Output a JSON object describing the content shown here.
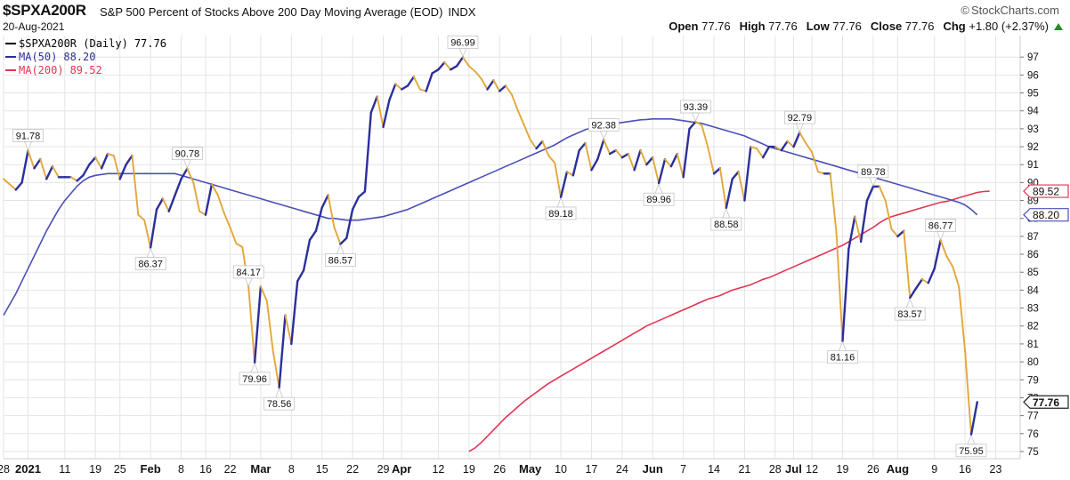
{
  "header": {
    "symbol": "$SPXA200R",
    "description": "S&P 500 Percent of Stocks Above 200 Day Moving Average (EOD)",
    "exchange": "INDX",
    "date": "20-Aug-2021",
    "brand": "StockCharts.com",
    "open_label": "Open",
    "open_value": "77.76",
    "high_label": "High",
    "high_value": "77.76",
    "low_label": "Low",
    "low_value": "77.76",
    "close_label": "Close",
    "close_value": "77.76",
    "chg_label": "Chg",
    "chg_value": "+1.80 (+2.37%)"
  },
  "colors": {
    "up_line": "#2b2f9a",
    "down_line": "#e3a73b",
    "ma50": "#4b4fb8",
    "ma200": "#e33553",
    "grid": "#e4e4e4"
  },
  "chart_data": {
    "type": "line",
    "title": "S&P 500 Percent of Stocks Above 200 Day Moving Average (EOD)",
    "ylim": [
      74.6,
      98.2
    ],
    "yticks": [
      75,
      76,
      77,
      78,
      79,
      80,
      81,
      82,
      83,
      84,
      85,
      86,
      87,
      88,
      89,
      90,
      91,
      92,
      93,
      94,
      95,
      96,
      97
    ],
    "xlim": [
      0,
      166
    ],
    "xticks": [
      {
        "i": 0,
        "label": "28",
        "bold": false
      },
      {
        "i": 4,
        "label": "2021",
        "bold": true
      },
      {
        "i": 10,
        "label": "11",
        "bold": false
      },
      {
        "i": 15,
        "label": "19",
        "bold": false
      },
      {
        "i": 19,
        "label": "25",
        "bold": false
      },
      {
        "i": 24,
        "label": "Feb",
        "bold": true
      },
      {
        "i": 29,
        "label": "8",
        "bold": false
      },
      {
        "i": 33,
        "label": "16",
        "bold": false
      },
      {
        "i": 37,
        "label": "22",
        "bold": false
      },
      {
        "i": 42,
        "label": "Mar",
        "bold": true
      },
      {
        "i": 47,
        "label": "8",
        "bold": false
      },
      {
        "i": 52,
        "label": "15",
        "bold": false
      },
      {
        "i": 57,
        "label": "22",
        "bold": false
      },
      {
        "i": 62,
        "label": "29",
        "bold": false
      },
      {
        "i": 65,
        "label": "Apr",
        "bold": true
      },
      {
        "i": 71,
        "label": "12",
        "bold": false
      },
      {
        "i": 76,
        "label": "19",
        "bold": false
      },
      {
        "i": 81,
        "label": "26",
        "bold": false
      },
      {
        "i": 86,
        "label": "May",
        "bold": true
      },
      {
        "i": 91,
        "label": "10",
        "bold": false
      },
      {
        "i": 96,
        "label": "17",
        "bold": false
      },
      {
        "i": 101,
        "label": "24",
        "bold": false
      },
      {
        "i": 106,
        "label": "Jun",
        "bold": true
      },
      {
        "i": 111,
        "label": "7",
        "bold": false
      },
      {
        "i": 116,
        "label": "14",
        "bold": false
      },
      {
        "i": 121,
        "label": "21",
        "bold": false
      },
      {
        "i": 126,
        "label": "28",
        "bold": false
      },
      {
        "i": 129,
        "label": "Jul",
        "bold": true
      },
      {
        "i": 132,
        "label": "12",
        "bold": false
      },
      {
        "i": 137,
        "label": "19",
        "bold": false
      },
      {
        "i": 142,
        "label": "26",
        "bold": false
      },
      {
        "i": 146,
        "label": "Aug",
        "bold": true
      },
      {
        "i": 152,
        "label": "9",
        "bold": false
      },
      {
        "i": 157,
        "label": "16",
        "bold": false
      },
      {
        "i": 162,
        "label": "23",
        "bold": false
      }
    ],
    "series": [
      {
        "name": "$SPXA200R (Daily)",
        "last_value": "77.76",
        "values": [
          90.2,
          89.9,
          89.6,
          90.0,
          91.78,
          90.8,
          91.3,
          90.2,
          90.9,
          90.3,
          90.3,
          90.3,
          90.1,
          90.4,
          91.0,
          91.4,
          90.8,
          91.6,
          91.5,
          90.2,
          91.0,
          91.5,
          88.2,
          87.9,
          86.37,
          88.5,
          89.1,
          88.4,
          89.3,
          90.2,
          90.78,
          90.0,
          88.4,
          88.2,
          89.9,
          89.3,
          88.3,
          87.5,
          86.6,
          86.4,
          84.17,
          79.96,
          84.2,
          83.4,
          80.6,
          78.56,
          82.6,
          81.0,
          84.5,
          85.1,
          86.8,
          87.3,
          88.6,
          89.3,
          87.5,
          86.57,
          86.9,
          88.5,
          89.2,
          89.5,
          93.9,
          94.8,
          93.1,
          94.6,
          95.5,
          95.2,
          95.4,
          95.9,
          95.2,
          95.1,
          96.1,
          96.3,
          96.7,
          96.3,
          96.5,
          96.99,
          96.5,
          96.2,
          95.8,
          95.2,
          95.7,
          95.1,
          95.4,
          94.9,
          94.0,
          93.2,
          92.4,
          91.9,
          92.3,
          91.5,
          91.1,
          89.18,
          90.6,
          90.4,
          91.8,
          92.2,
          90.7,
          91.3,
          92.38,
          91.6,
          91.8,
          91.4,
          91.6,
          90.7,
          91.8,
          91.0,
          91.4,
          89.96,
          91.3,
          90.9,
          91.6,
          90.3,
          93.0,
          93.39,
          93.2,
          92.0,
          90.5,
          90.8,
          88.58,
          90.2,
          90.6,
          89.0,
          92.0,
          91.9,
          91.4,
          92.0,
          92.0,
          91.8,
          92.3,
          92.0,
          92.79,
          92.2,
          91.7,
          90.6,
          90.5,
          90.5,
          87.2,
          81.16,
          86.3,
          88.1,
          86.7,
          89.0,
          89.78,
          89.78,
          89.0,
          87.4,
          87.0,
          87.3,
          83.57,
          84.1,
          84.6,
          84.4,
          85.2,
          86.77,
          85.9,
          85.3,
          84.2,
          80.6,
          75.95,
          77.76
        ]
      },
      {
        "name": "MA(50)",
        "last_value": "88.20",
        "values": [
          82.6,
          83.2,
          83.8,
          84.5,
          85.2,
          85.9,
          86.6,
          87.3,
          87.9,
          88.5,
          89.0,
          89.4,
          89.8,
          90.1,
          90.3,
          90.4,
          90.45,
          90.5,
          90.5,
          90.5,
          90.5,
          90.5,
          90.5,
          90.5,
          90.5,
          90.5,
          90.5,
          90.5,
          90.5,
          90.4,
          90.3,
          90.2,
          90.1,
          90.0,
          89.9,
          89.8,
          89.7,
          89.6,
          89.5,
          89.4,
          89.3,
          89.2,
          89.1,
          89.0,
          88.9,
          88.8,
          88.7,
          88.6,
          88.5,
          88.4,
          88.3,
          88.2,
          88.1,
          88.0,
          88.0,
          87.95,
          87.9,
          87.9,
          87.9,
          87.95,
          88.0,
          88.05,
          88.1,
          88.2,
          88.3,
          88.4,
          88.5,
          88.65,
          88.8,
          88.95,
          89.1,
          89.25,
          89.4,
          89.55,
          89.7,
          89.85,
          90.0,
          90.15,
          90.3,
          90.45,
          90.6,
          90.75,
          90.9,
          91.05,
          91.2,
          91.35,
          91.5,
          91.65,
          91.8,
          91.95,
          92.1,
          92.3,
          92.5,
          92.65,
          92.8,
          92.95,
          93.05,
          93.15,
          93.2,
          93.25,
          93.3,
          93.35,
          93.4,
          93.45,
          93.5,
          93.52,
          93.55,
          93.55,
          93.55,
          93.55,
          93.5,
          93.45,
          93.4,
          93.35,
          93.3,
          93.2,
          93.1,
          93.0,
          92.9,
          92.8,
          92.7,
          92.6,
          92.45,
          92.3,
          92.15,
          92.0,
          91.9,
          91.8,
          91.7,
          91.6,
          91.5,
          91.4,
          91.3,
          91.2,
          91.1,
          91.0,
          90.9,
          90.8,
          90.7,
          90.6,
          90.5,
          90.4,
          90.3,
          90.2,
          90.1,
          90.0,
          89.9,
          89.8,
          89.7,
          89.6,
          89.5,
          89.4,
          89.3,
          89.2,
          89.1,
          89.0,
          88.9,
          88.75,
          88.5,
          88.2
        ]
      },
      {
        "name": "MA(200)",
        "last_value": "89.52",
        "start_index": 76,
        "values": [
          75.0,
          75.2,
          75.5,
          75.85,
          76.2,
          76.55,
          76.9,
          77.2,
          77.5,
          77.8,
          78.05,
          78.3,
          78.55,
          78.8,
          79.0,
          79.2,
          79.4,
          79.6,
          79.8,
          80.0,
          80.2,
          80.4,
          80.6,
          80.8,
          81.0,
          81.2,
          81.4,
          81.6,
          81.8,
          82.0,
          82.15,
          82.3,
          82.45,
          82.6,
          82.75,
          82.9,
          83.05,
          83.2,
          83.35,
          83.5,
          83.6,
          83.7,
          83.85,
          84.0,
          84.1,
          84.2,
          84.3,
          84.45,
          84.6,
          84.7,
          84.85,
          85.0,
          85.15,
          85.3,
          85.45,
          85.6,
          85.75,
          85.9,
          86.05,
          86.2,
          86.35,
          86.5,
          86.7,
          86.9,
          87.1,
          87.3,
          87.5,
          87.75,
          87.95,
          88.1,
          88.2,
          88.3,
          88.4,
          88.5,
          88.6,
          88.7,
          88.8,
          88.9,
          88.95,
          89.05,
          89.15,
          89.25,
          89.35,
          89.45,
          89.5,
          89.52
        ]
      }
    ],
    "annotations": [
      {
        "i": 4,
        "v": 91.78,
        "pos": "above",
        "label": "91.78"
      },
      {
        "i": 24,
        "v": 86.37,
        "pos": "below",
        "label": "86.37"
      },
      {
        "i": 30,
        "v": 90.78,
        "pos": "above",
        "label": "90.78"
      },
      {
        "i": 40,
        "v": 84.17,
        "pos": "above",
        "label": "84.17"
      },
      {
        "i": 41,
        "v": 79.96,
        "pos": "below",
        "label": "79.96"
      },
      {
        "i": 45,
        "v": 78.56,
        "pos": "below",
        "label": "78.56"
      },
      {
        "i": 55,
        "v": 86.57,
        "pos": "below",
        "label": "86.57"
      },
      {
        "i": 75,
        "v": 96.99,
        "pos": "above",
        "label": "96.99"
      },
      {
        "i": 91,
        "v": 89.18,
        "pos": "below",
        "label": "89.18"
      },
      {
        "i": 98,
        "v": 92.38,
        "pos": "above",
        "label": "92.38"
      },
      {
        "i": 107,
        "v": 89.96,
        "pos": "below",
        "label": "89.96"
      },
      {
        "i": 113,
        "v": 93.39,
        "pos": "above",
        "label": "93.39"
      },
      {
        "i": 118,
        "v": 88.58,
        "pos": "below",
        "label": "88.58"
      },
      {
        "i": 130,
        "v": 92.79,
        "pos": "above",
        "label": "92.79"
      },
      {
        "i": 137,
        "v": 81.16,
        "pos": "below",
        "label": "81.16"
      },
      {
        "i": 142,
        "v": 89.78,
        "pos": "above",
        "label": "89.78"
      },
      {
        "i": 148,
        "v": 83.57,
        "pos": "below",
        "label": "83.57"
      },
      {
        "i": 153,
        "v": 86.77,
        "pos": "above",
        "label": "86.77"
      },
      {
        "i": 158,
        "v": 75.95,
        "pos": "below",
        "label": "75.95"
      }
    ],
    "grid": true,
    "legend_placement": "top-left"
  }
}
